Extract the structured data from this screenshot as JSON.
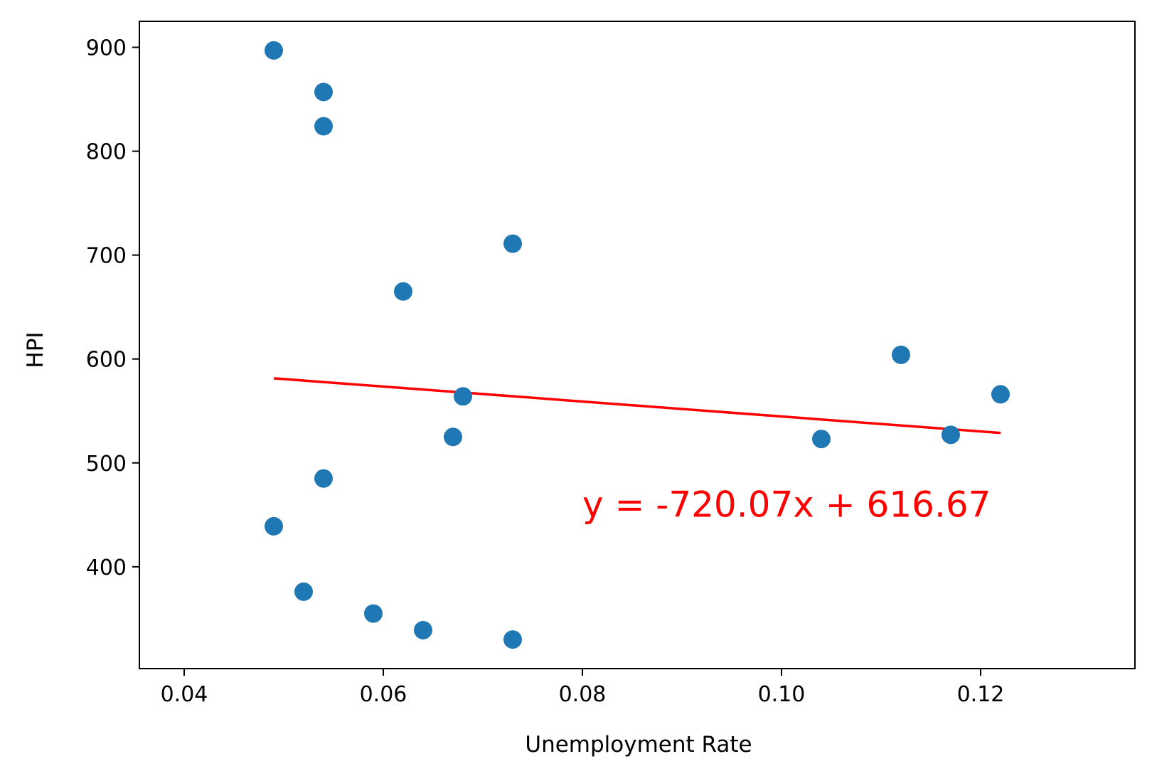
{
  "chart_data": {
    "type": "scatter",
    "xlabel": "Unemployment Rate",
    "ylabel": "HPI",
    "xlim": [
      0.0355,
      0.1355
    ],
    "ylim": [
      302,
      925
    ],
    "xticks": [
      0.04,
      0.06,
      0.08,
      0.1,
      0.12
    ],
    "xtick_labels": [
      "0.04",
      "0.06",
      "0.08",
      "0.10",
      "0.12"
    ],
    "yticks": [
      400,
      500,
      600,
      700,
      800,
      900
    ],
    "ytick_labels": [
      "400",
      "500",
      "600",
      "700",
      "800",
      "900"
    ],
    "grid": false,
    "series": [
      {
        "marker": "circle",
        "color": "#1f77b4",
        "points": [
          {
            "x": 0.049,
            "y": 897
          },
          {
            "x": 0.054,
            "y": 857
          },
          {
            "x": 0.054,
            "y": 824
          },
          {
            "x": 0.073,
            "y": 711
          },
          {
            "x": 0.062,
            "y": 665
          },
          {
            "x": 0.112,
            "y": 604
          },
          {
            "x": 0.122,
            "y": 566
          },
          {
            "x": 0.068,
            "y": 564
          },
          {
            "x": 0.117,
            "y": 527
          },
          {
            "x": 0.067,
            "y": 525
          },
          {
            "x": 0.104,
            "y": 523
          },
          {
            "x": 0.054,
            "y": 485
          },
          {
            "x": 0.049,
            "y": 439
          },
          {
            "x": 0.052,
            "y": 376
          },
          {
            "x": 0.059,
            "y": 355
          },
          {
            "x": 0.064,
            "y": 339
          },
          {
            "x": 0.073,
            "y": 330
          }
        ]
      }
    ],
    "regression_line": {
      "color": "#ff0000",
      "slope": -720.07,
      "intercept": 616.67,
      "x_start": 0.049,
      "x_end": 0.122
    },
    "annotation": {
      "text": "y = -720.07x + 616.67",
      "x": 0.08,
      "y": 448,
      "color": "#ff0000"
    }
  }
}
